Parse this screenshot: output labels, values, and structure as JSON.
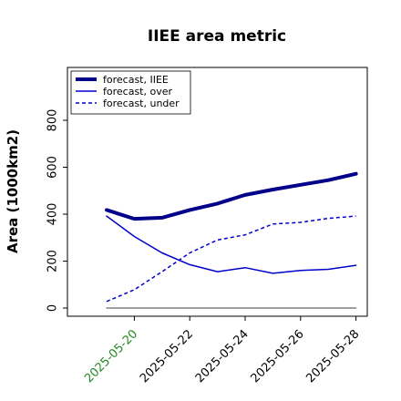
{
  "chart_data": {
    "type": "line",
    "title": "IIEE area metric",
    "xlabel": "",
    "ylabel": "Area (1000km2)",
    "x": [
      "2025-05-19",
      "2025-05-20",
      "2025-05-21",
      "2025-05-22",
      "2025-05-23",
      "2025-05-24",
      "2025-05-25",
      "2025-05-26",
      "2025-05-27",
      "2025-05-28"
    ],
    "xticks": [
      "2025-05-20",
      "2025-05-22",
      "2025-05-24",
      "2025-05-26",
      "2025-05-28"
    ],
    "xtick_colors": [
      "#228b22",
      "#000000",
      "#000000",
      "#000000",
      "#000000"
    ],
    "yticks": [
      0,
      200,
      400,
      600,
      800
    ],
    "ylim": [
      -40,
      950
    ],
    "series": [
      {
        "name": "forecast, IIEE",
        "color": "#00008b",
        "style": "solid",
        "width": 4,
        "values": [
          418,
          380,
          385,
          418,
          445,
          482,
          505,
          525,
          545,
          572
        ]
      },
      {
        "name": "forecast, over",
        "color": "#0000cd",
        "style": "solid",
        "width": 1.5,
        "values": [
          392,
          305,
          235,
          185,
          155,
          172,
          148,
          160,
          165,
          182
        ]
      },
      {
        "name": "forecast, under",
        "color": "#0000cd",
        "style": "dashed",
        "width": 1.5,
        "values": [
          28,
          78,
          155,
          235,
          290,
          312,
          358,
          365,
          382,
          392
        ]
      },
      {
        "color": "#808080",
        "style": "solid",
        "width": 1.5,
        "values": [
          0,
          0,
          0,
          0,
          0,
          0,
          0,
          0,
          0,
          0
        ]
      }
    ],
    "grid": false,
    "legend_position": "top-left"
  }
}
